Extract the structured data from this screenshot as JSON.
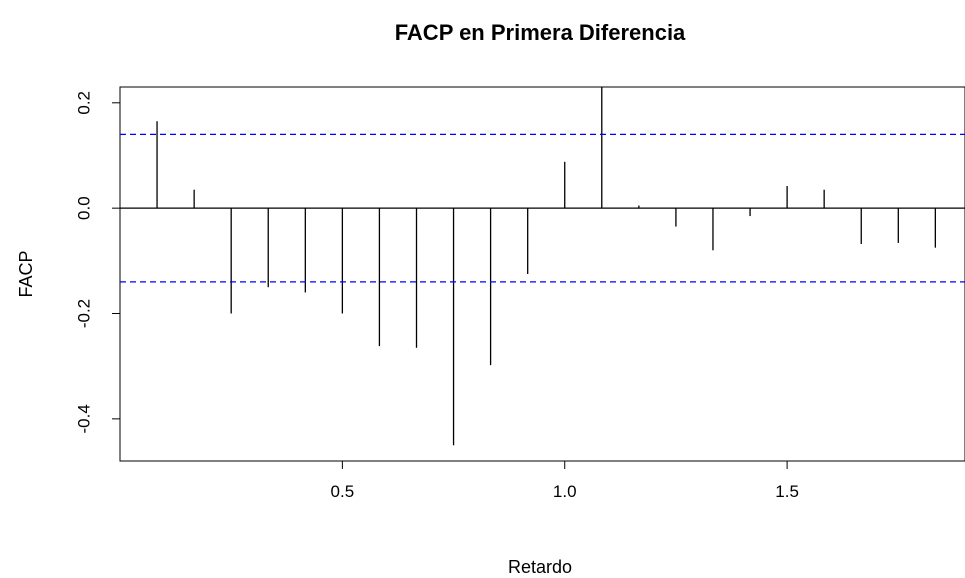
{
  "chart_data": {
    "type": "bar",
    "subtype": "pacf-spikes",
    "title": "FACP en Primera Diferencia",
    "xlabel": "Retardo",
    "ylabel": "FACP",
    "xlim": [
      0.0,
      1.9
    ],
    "ylim": [
      -0.48,
      0.23
    ],
    "xticks": [
      0.5,
      1.0,
      1.5
    ],
    "xtick_labels": [
      "0.5",
      "1.0",
      "1.5"
    ],
    "yticks": [
      -0.4,
      -0.2,
      0.0,
      0.2
    ],
    "ytick_labels": [
      "-0.4",
      "-0.2",
      "0.0",
      "0.2"
    ],
    "confidence_bound": 0.14,
    "confidence_color": "#0000ff",
    "spike_color": "#000000",
    "lags": [
      0.0833,
      0.1667,
      0.25,
      0.3333,
      0.4167,
      0.5,
      0.5833,
      0.6667,
      0.75,
      0.8333,
      0.9167,
      1.0,
      1.0833,
      1.1667,
      1.25,
      1.3333,
      1.4167,
      1.5,
      1.5833,
      1.6667,
      1.75,
      1.8333
    ],
    "values": [
      0.165,
      0.035,
      -0.2,
      -0.15,
      -0.16,
      -0.2,
      -0.262,
      -0.265,
      -0.45,
      -0.298,
      -0.125,
      0.088,
      0.23,
      0.005,
      -0.035,
      -0.08,
      -0.015,
      0.042,
      0.035,
      -0.068,
      -0.066,
      -0.075
    ]
  }
}
